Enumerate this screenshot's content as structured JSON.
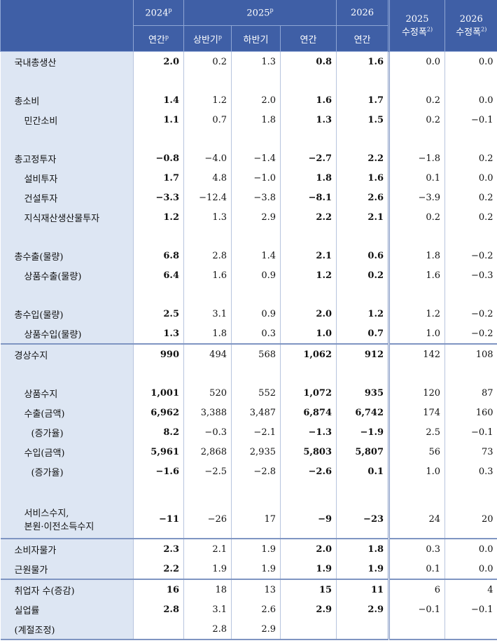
{
  "header": {
    "row1": [
      {
        "text": "2024",
        "sup": "p"
      },
      {
        "text": "2025",
        "sup": "p"
      },
      {
        "text": "2026"
      },
      {
        "text": "2025",
        "line2": "수정폭",
        "sup": "2)"
      },
      {
        "text": "2026",
        "line2": "수정폭",
        "sup": "2)"
      }
    ],
    "row2": [
      {
        "text": "연간",
        "sup": "p"
      },
      {
        "text": "상반기",
        "sup": "p"
      },
      {
        "text": "하반기"
      },
      {
        "text": "연간"
      },
      {
        "text": "연간"
      }
    ]
  },
  "bold_columns": [
    0,
    3,
    4
  ],
  "table": {
    "sections": [
      {
        "groups": [
          {
            "rows": [
              {
                "label": "국내총생산",
                "level": 0,
                "values": [
                  "2.0",
                  "0.2",
                  "1.3",
                  "0.8",
                  "1.6",
                  "0.0",
                  "0.0"
                ]
              }
            ]
          },
          {
            "rows": [
              {
                "label": "총소비",
                "level": 0,
                "values": [
                  "1.4",
                  "1.2",
                  "2.0",
                  "1.6",
                  "1.7",
                  "0.2",
                  "0.0"
                ]
              },
              {
                "label": "민간소비",
                "level": 1,
                "values": [
                  "1.1",
                  "0.7",
                  "1.8",
                  "1.3",
                  "1.5",
                  "0.2",
                  "−0.1"
                ]
              }
            ]
          },
          {
            "rows": [
              {
                "label": "총고정투자",
                "level": 0,
                "values": [
                  "−0.8",
                  "−4.0",
                  "−1.4",
                  "−2.7",
                  "2.2",
                  "−1.8",
                  "0.2"
                ]
              },
              {
                "label": "설비투자",
                "level": 1,
                "values": [
                  "1.7",
                  "4.8",
                  "−1.0",
                  "1.8",
                  "1.6",
                  "0.1",
                  "0.0"
                ]
              },
              {
                "label": "건설투자",
                "level": 1,
                "values": [
                  "−3.3",
                  "−12.4",
                  "−3.8",
                  "−8.1",
                  "2.6",
                  "−3.9",
                  "0.2"
                ]
              },
              {
                "label": "지식재산생산물투자",
                "level": 1,
                "values": [
                  "1.2",
                  "1.3",
                  "2.9",
                  "2.2",
                  "2.1",
                  "0.2",
                  "0.2"
                ]
              }
            ]
          },
          {
            "rows": [
              {
                "label": "총수출(물량)",
                "level": 0,
                "values": [
                  "6.8",
                  "2.8",
                  "1.4",
                  "2.1",
                  "0.6",
                  "1.8",
                  "−0.2"
                ]
              },
              {
                "label": "상품수출(물량)",
                "level": 1,
                "values": [
                  "6.4",
                  "1.6",
                  "0.9",
                  "1.2",
                  "0.2",
                  "1.6",
                  "−0.3"
                ]
              }
            ]
          },
          {
            "rows": [
              {
                "label": "총수입(물량)",
                "level": 0,
                "values": [
                  "2.5",
                  "3.1",
                  "0.9",
                  "2.0",
                  "1.2",
                  "1.2",
                  "−0.2"
                ]
              },
              {
                "label": "상품수입(물량)",
                "level": 1,
                "values": [
                  "1.3",
                  "1.8",
                  "0.3",
                  "1.0",
                  "0.7",
                  "1.0",
                  "−0.2"
                ]
              }
            ]
          }
        ]
      },
      {
        "groups": [
          {
            "rows": [
              {
                "label": "경상수지",
                "level": 0,
                "values": [
                  "990",
                  "494",
                  "568",
                  "1,062",
                  "912",
                  "142",
                  "108"
                ]
              }
            ]
          },
          {
            "rows": [
              {
                "label": "상품수지",
                "level": 1,
                "values": [
                  "1,001",
                  "520",
                  "552",
                  "1,072",
                  "935",
                  "120",
                  "87"
                ]
              },
              {
                "label": "수출(금액)",
                "level": 1,
                "values": [
                  "6,962",
                  "3,388",
                  "3,487",
                  "6,874",
                  "6,742",
                  "174",
                  "160"
                ]
              },
              {
                "label": "(증가율)",
                "level": 2,
                "values": [
                  "8.2",
                  "−0.3",
                  "−2.1",
                  "−1.3",
                  "−1.9",
                  "2.5",
                  "−0.1"
                ]
              },
              {
                "label": "수입(금액)",
                "level": 1,
                "values": [
                  "5,961",
                  "2,868",
                  "2,935",
                  "5,803",
                  "5,807",
                  "56",
                  "73"
                ]
              },
              {
                "label": "(증가율)",
                "level": 2,
                "values": [
                  "−1.6",
                  "−2.5",
                  "−2.8",
                  "−2.6",
                  "0.1",
                  "1.0",
                  "0.3"
                ]
              }
            ]
          },
          {
            "rows": [
              {
                "label": [
                  "서비스수지,",
                  "본원·이전소득수지"
                ],
                "level": 1,
                "values": [
                  "−11",
                  "−26",
                  "17",
                  "−9",
                  "−23",
                  "24",
                  "20"
                ]
              }
            ]
          }
        ]
      },
      {
        "groups": [
          {
            "rows": [
              {
                "label": "소비자물가",
                "level": 0,
                "values": [
                  "2.3",
                  "2.1",
                  "1.9",
                  "2.0",
                  "1.8",
                  "0.3",
                  "0.0"
                ]
              },
              {
                "label": "근원물가",
                "level": 0,
                "values": [
                  "2.2",
                  "1.9",
                  "1.9",
                  "1.9",
                  "1.9",
                  "0.1",
                  "0.0"
                ]
              }
            ]
          }
        ]
      },
      {
        "groups": [
          {
            "rows": [
              {
                "label": "취업자 수(증감)",
                "level": 0,
                "values": [
                  "16",
                  "18",
                  "13",
                  "15",
                  "11",
                  "6",
                  "4"
                ]
              },
              {
                "label": "실업률",
                "level": 0,
                "values": [
                  "2.8",
                  "3.1",
                  "2.6",
                  "2.9",
                  "2.9",
                  "−0.1",
                  "−0.1"
                ]
              },
              {
                "label": "(계절조정)",
                "level": 0,
                "values": [
                  null,
                  "2.8",
                  "2.9",
                  null,
                  null,
                  null,
                  null
                ]
              }
            ]
          }
        ]
      }
    ]
  }
}
